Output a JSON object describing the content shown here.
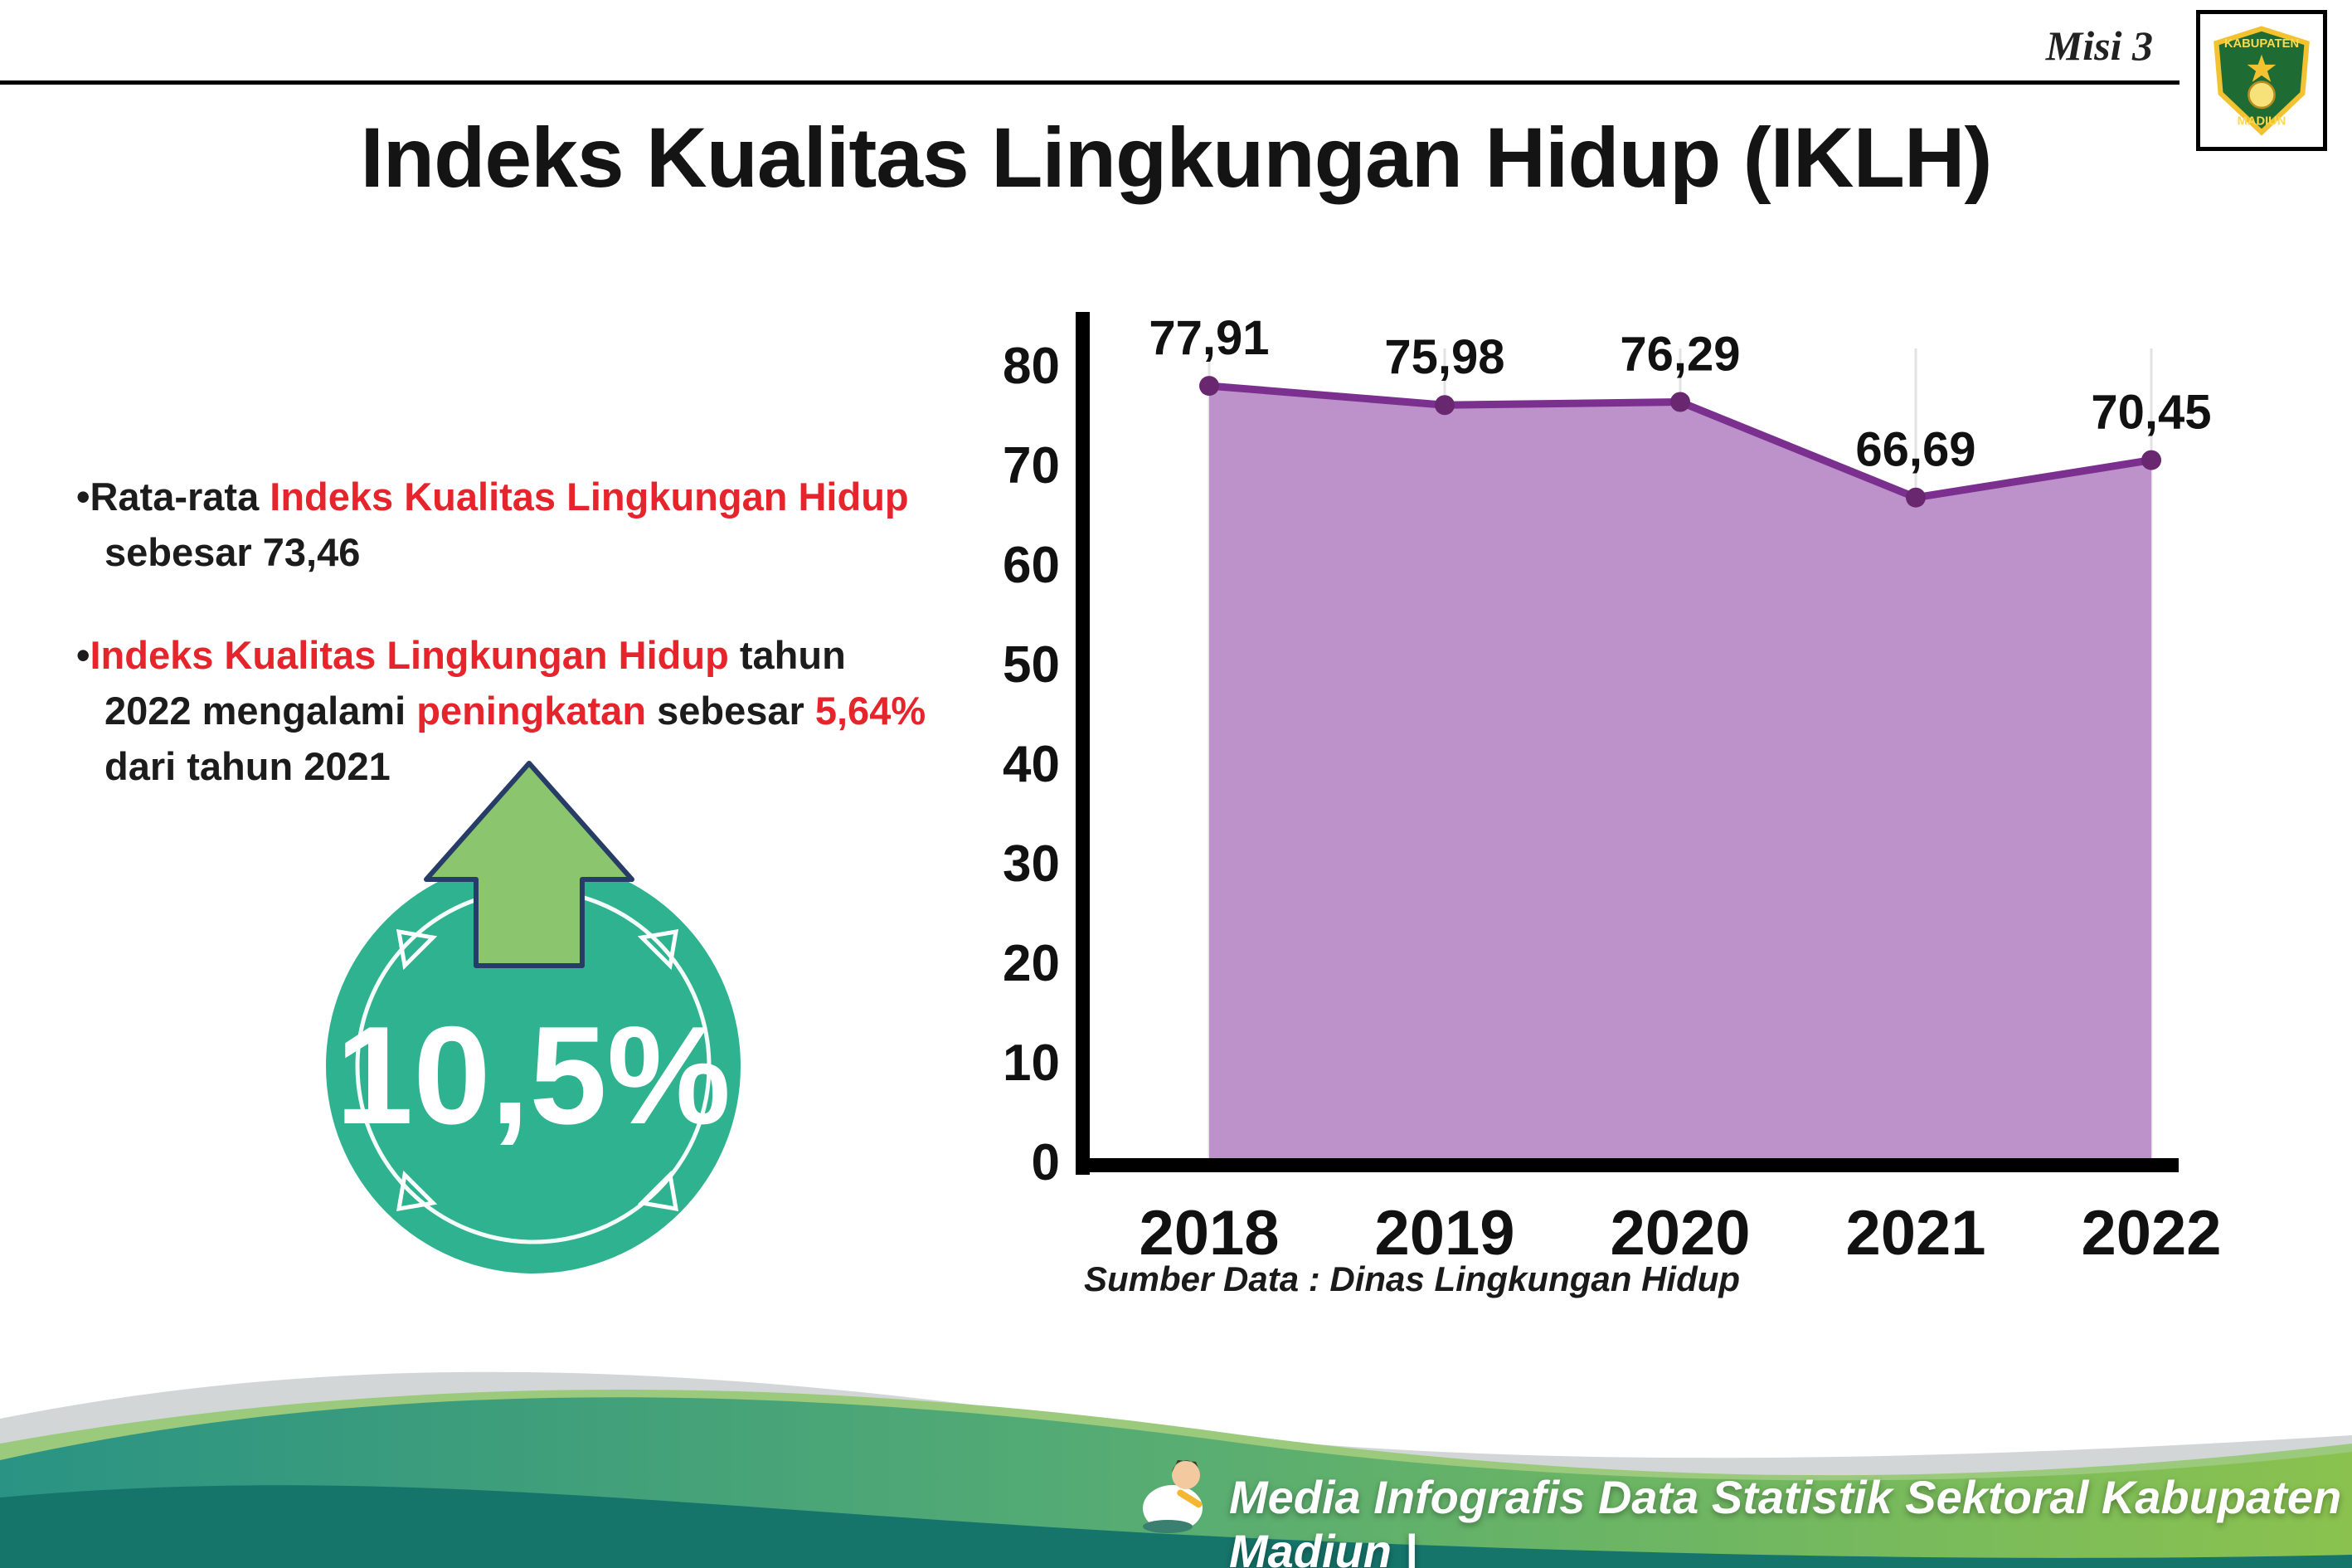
{
  "page": {
    "misi_label": "Misi 3",
    "title": "Indeks Kualitas Lingkungan Hidup (IKLH)"
  },
  "logo": {
    "line1": "KABUPATEN",
    "line2": "MADIUN"
  },
  "bullets": {
    "b1": [
      {
        "t": "Rata-rata "
      },
      {
        "t": "Indeks Kualitas Lingkungan Hidup"
      },
      {
        "t": " sebesar 73,46"
      }
    ],
    "b2": [
      {
        "t": "Indeks Kualitas Lingkungan Hidup"
      },
      {
        "t": " tahun 2022 mengalami "
      },
      {
        "t": "peningkatan"
      },
      {
        "t": " sebesar "
      },
      {
        "t": "5,64%"
      },
      {
        "t": " dari tahun 2021"
      }
    ]
  },
  "badge": {
    "value": "10,5%"
  },
  "chart_data": {
    "type": "area",
    "categories": [
      "2018",
      "2019",
      "2020",
      "2021",
      "2022"
    ],
    "values": [
      77.91,
      75.98,
      76.29,
      66.69,
      70.45
    ],
    "value_labels": [
      "77,91",
      "75,98",
      "76,29",
      "66,69",
      "70,45"
    ],
    "ylim": [
      0,
      80
    ],
    "yticks": [
      0,
      10,
      20,
      30,
      40,
      50,
      60,
      70,
      80
    ],
    "grid": "vertical-light",
    "legend": "none",
    "area_color": "#bd91ca",
    "line_color": "#7b2f8e",
    "point_color": "#69276f",
    "source": "Sumber Data : Dinas Lingkungan Hidup"
  },
  "footer": {
    "text": "Media Infografis Data Statistik Sektoral Kabupaten Madiun |"
  },
  "colors": {
    "accent_red": "#e5242c",
    "badge_teal": "#2eb28f",
    "arrow_green": "#8bc56e",
    "footer_teal": "#2a9383",
    "footer_green": "#8bc24f"
  }
}
